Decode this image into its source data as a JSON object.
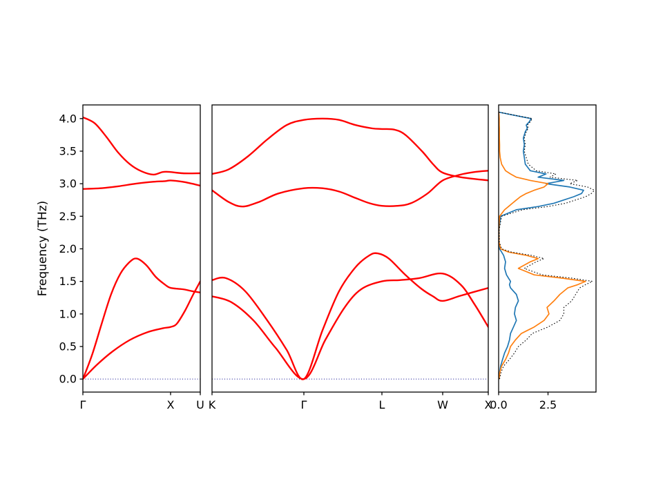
{
  "figure": {
    "background": "#ffffff",
    "ylabel": "Frequency (THz)",
    "ylim": [
      -0.2,
      4.21
    ],
    "yticks": [
      0,
      0.5,
      1.0,
      1.5,
      2.0,
      2.5,
      3.0,
      3.5,
      4.0
    ],
    "ytick_labels": [
      "0.0",
      "0.5",
      "1.0",
      "1.5",
      "2.0",
      "2.5",
      "3.0",
      "3.5",
      "4.0"
    ],
    "band_color": "#ff0000",
    "axis_color": "#000000",
    "zero_line": {
      "value": 0,
      "color": "#00008b",
      "style": "dotted"
    }
  },
  "chart_data": [
    {
      "id": "bands-gamma-x-u",
      "type": "line",
      "role": "phonon-band-structure",
      "xticks": [
        {
          "label": "Γ",
          "pos": 0
        },
        {
          "label": "X",
          "pos": 0.747
        },
        {
          "label": "U",
          "pos": 1.0
        }
      ],
      "bands": [
        {
          "x": [
            0,
            0.12,
            0.25,
            0.4,
            0.55,
            0.68,
            0.747,
            0.8,
            0.87,
            0.94,
            1.0
          ],
          "y": [
            0,
            0.22,
            0.42,
            0.6,
            0.72,
            0.78,
            0.8,
            0.85,
            1.05,
            1.3,
            1.5
          ]
        },
        {
          "x": [
            0,
            0.08,
            0.16,
            0.24,
            0.32,
            0.4,
            0.46,
            0.54,
            0.62,
            0.7,
            0.747,
            0.85,
            0.93,
            1.0
          ],
          "y": [
            0,
            0.38,
            0.85,
            1.3,
            1.62,
            1.8,
            1.85,
            1.75,
            1.57,
            1.45,
            1.4,
            1.38,
            1.35,
            1.33
          ]
        },
        {
          "x": [
            0,
            0.1,
            0.2,
            0.3,
            0.4,
            0.5,
            0.6,
            0.68,
            0.747,
            0.85,
            1.0
          ],
          "y": [
            4.02,
            3.93,
            3.72,
            3.48,
            3.3,
            3.19,
            3.14,
            3.18,
            3.18,
            3.16,
            3.16
          ]
        },
        {
          "x": [
            0,
            0.15,
            0.3,
            0.45,
            0.6,
            0.7,
            0.747,
            0.85,
            0.93,
            1.0
          ],
          "y": [
            2.92,
            2.93,
            2.96,
            3.0,
            3.03,
            3.04,
            3.05,
            3.03,
            3.0,
            2.97
          ]
        }
      ]
    },
    {
      "id": "bands-k-gamma-l-w-x",
      "type": "line",
      "role": "phonon-band-structure",
      "xticks": [
        {
          "label": "K",
          "pos": 0
        },
        {
          "label": "Γ",
          "pos": 0.3325
        },
        {
          "label": "L",
          "pos": 0.615
        },
        {
          "label": "W",
          "pos": 0.835
        },
        {
          "label": "X",
          "pos": 1.0
        }
      ],
      "bands": [
        {
          "x": [
            0,
            0.07,
            0.15,
            0.23,
            0.3325,
            0.41,
            0.48,
            0.54,
            0.615,
            0.68,
            0.75,
            0.835,
            0.9,
            0.95,
            1.0
          ],
          "y": [
            1.27,
            1.18,
            0.9,
            0.48,
            0,
            0.6,
            1.1,
            1.38,
            1.5,
            1.52,
            1.55,
            1.62,
            1.45,
            1.15,
            0.8
          ]
        },
        {
          "x": [
            0,
            0.05,
            0.12,
            0.2,
            0.27,
            0.3325,
            0.4,
            0.46,
            0.52,
            0.57,
            0.6,
            0.64,
            0.7,
            0.76,
            0.8,
            0.835,
            0.9,
            1.0
          ],
          "y": [
            1.52,
            1.55,
            1.35,
            0.9,
            0.45,
            0,
            0.75,
            1.35,
            1.72,
            1.9,
            1.93,
            1.85,
            1.6,
            1.38,
            1.27,
            1.2,
            1.28,
            1.4
          ]
        },
        {
          "x": [
            0,
            0.06,
            0.13,
            0.2,
            0.27,
            0.3325,
            0.4,
            0.46,
            0.52,
            0.58,
            0.615,
            0.66,
            0.7,
            0.76,
            0.8,
            0.835,
            0.9,
            1.0
          ],
          "y": [
            3.15,
            3.22,
            3.42,
            3.68,
            3.9,
            3.98,
            4.0,
            3.98,
            3.9,
            3.85,
            3.84,
            3.83,
            3.75,
            3.5,
            3.3,
            3.17,
            3.1,
            3.05
          ]
        },
        {
          "x": [
            0,
            0.06,
            0.11,
            0.17,
            0.24,
            0.3325,
            0.4,
            0.46,
            0.52,
            0.57,
            0.615,
            0.67,
            0.72,
            0.78,
            0.835,
            0.9,
            0.95,
            1.0
          ],
          "y": [
            2.9,
            2.72,
            2.65,
            2.72,
            2.85,
            2.93,
            2.93,
            2.88,
            2.78,
            2.7,
            2.66,
            2.66,
            2.7,
            2.85,
            3.05,
            3.14,
            3.18,
            3.2
          ]
        }
      ]
    },
    {
      "id": "phonon-dos",
      "type": "line",
      "role": "phonon-dos",
      "xlim": [
        0,
        4.93
      ],
      "xticks": [
        {
          "label": "0.0",
          "value": 0
        },
        {
          "label": "2.5",
          "value": 2.5
        }
      ],
      "freq": [
        0,
        0.1,
        0.2,
        0.3,
        0.4,
        0.5,
        0.6,
        0.7,
        0.8,
        0.9,
        1.0,
        1.1,
        1.2,
        1.3,
        1.4,
        1.45,
        1.5,
        1.55,
        1.6,
        1.7,
        1.8,
        1.85,
        1.9,
        1.95,
        2.0,
        2.1,
        2.3,
        2.5,
        2.6,
        2.65,
        2.7,
        2.75,
        2.8,
        2.85,
        2.9,
        2.95,
        3.0,
        3.05,
        3.1,
        3.15,
        3.2,
        3.3,
        3.4,
        3.5,
        3.6,
        3.7,
        3.8,
        3.85,
        3.9,
        3.95,
        4.0,
        4.05,
        4.1
      ],
      "series": [
        {
          "name": "dos-partial-blue",
          "color": "#1f77b4",
          "linestyle": "solid",
          "values": [
            0.02,
            0.05,
            0.1,
            0.2,
            0.3,
            0.45,
            0.55,
            0.6,
            0.75,
            0.9,
            0.8,
            0.85,
            1.0,
            0.9,
            0.6,
            0.55,
            0.6,
            0.5,
            0.4,
            0.3,
            0.35,
            0.3,
            0.25,
            0.15,
            0.05,
            0.02,
            0.02,
            0.1,
            0.9,
            2.0,
            2.8,
            3.3,
            3.8,
            4.2,
            4.3,
            3.6,
            2.4,
            3.3,
            2.0,
            2.4,
            1.6,
            1.35,
            1.3,
            1.25,
            1.3,
            1.25,
            1.35,
            1.45,
            1.4,
            1.55,
            1.65,
            0.8,
            0
          ]
        },
        {
          "name": "dos-partial-orange",
          "color": "#ff7f0e",
          "linestyle": "solid",
          "values": [
            0.02,
            0.06,
            0.15,
            0.35,
            0.5,
            0.6,
            0.85,
            1.15,
            1.8,
            2.3,
            2.55,
            2.45,
            2.8,
            3.1,
            3.5,
            4.0,
            4.4,
            3.2,
            1.8,
            1.0,
            1.6,
            2.0,
            1.4,
            0.5,
            0.1,
            0.02,
            0.01,
            0.05,
            0.3,
            0.5,
            0.7,
            0.9,
            1.1,
            1.4,
            1.8,
            2.3,
            2.5,
            1.6,
            0.9,
            0.6,
            0.35,
            0.15,
            0.08,
            0.05,
            0.05,
            0.04,
            0.04,
            0.04,
            0.03,
            0.03,
            0.03,
            0.02,
            0
          ]
        },
        {
          "name": "dos-total-dotted",
          "color": "#000000",
          "linestyle": "dotted",
          "values": [
            0.05,
            0.12,
            0.25,
            0.55,
            0.8,
            1.0,
            1.4,
            1.7,
            2.5,
            3.1,
            3.3,
            3.3,
            3.7,
            3.9,
            4.1,
            4.4,
            4.75,
            3.7,
            2.2,
            1.3,
            1.9,
            2.3,
            1.65,
            0.65,
            0.15,
            0.04,
            0.03,
            0.15,
            1.2,
            2.5,
            3.4,
            3.9,
            4.4,
            4.7,
            4.85,
            4.5,
            3.6,
            4.0,
            2.6,
            2.9,
            1.9,
            1.5,
            1.4,
            1.3,
            1.35,
            1.3,
            1.4,
            1.5,
            1.45,
            1.6,
            1.7,
            0.85,
            0
          ]
        }
      ]
    }
  ]
}
